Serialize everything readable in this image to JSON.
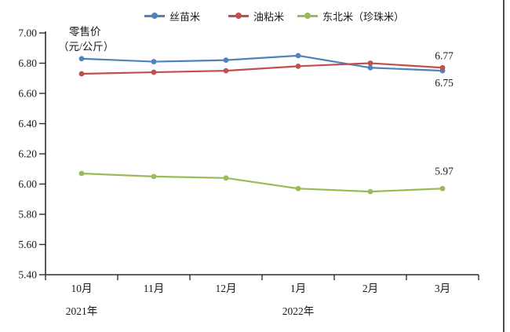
{
  "chart_data": {
    "type": "line",
    "title": "",
    "ylabel_lines": [
      "零售价",
      "（元/公斤）"
    ],
    "categories": [
      "10月",
      "11月",
      "12月",
      "1月",
      "2月",
      "3月"
    ],
    "year_labels": [
      {
        "text": "2021年",
        "category_index": 0
      },
      {
        "text": "2022年",
        "category_index": 3
      }
    ],
    "y_axis": {
      "min": 5.4,
      "max": 7.0,
      "step": 0.2
    },
    "y_ticks": [
      "7.00",
      "6.80",
      "6.60",
      "6.40",
      "6.20",
      "6.00",
      "5.80",
      "5.60",
      "5.40"
    ],
    "grid": false,
    "legend_position": "top",
    "series": [
      {
        "name": "丝苗米",
        "color": "#4F81BD",
        "values": [
          6.83,
          6.81,
          6.82,
          6.85,
          6.77,
          6.75
        ],
        "end_label": "6.75"
      },
      {
        "name": "油粘米",
        "color": "#C0504D",
        "values": [
          6.73,
          6.74,
          6.75,
          6.78,
          6.8,
          6.77
        ],
        "end_label": "6.77"
      },
      {
        "name": "东北米（珍珠米）",
        "color": "#9BBB59",
        "values": [
          6.07,
          6.05,
          6.04,
          5.97,
          5.95,
          5.97
        ],
        "end_label": "5.97"
      }
    ],
    "page_border_color": "#4d4d4d",
    "axis_color": "#2e2e2e",
    "text_color": "#1a1a1a"
  }
}
